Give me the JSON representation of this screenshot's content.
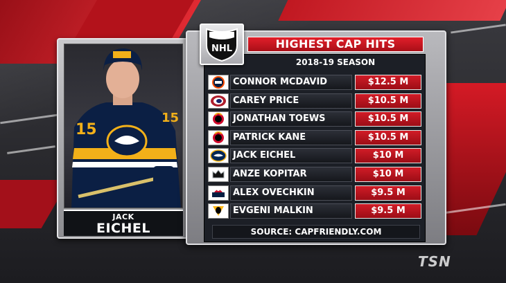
{
  "board": {
    "title": "HIGHEST CAP HITS",
    "season": "2018-19 SEASON",
    "source": "SOURCE: CAPFRIENDLY.COM"
  },
  "league_logo": {
    "icon": "nhl-shield-logo",
    "text": "NHL"
  },
  "player": {
    "first_name": "JACK",
    "last_name": "EICHEL",
    "jersey_number": "15",
    "photo": "player-photo"
  },
  "rows": [
    {
      "name": "CONNOR MCDAVID",
      "cap": "$12.5 M",
      "team_icon": "oilers-logo",
      "colors": [
        "#041e42",
        "#ff4c00"
      ]
    },
    {
      "name": "CAREY PRICE",
      "cap": "$10.5 M",
      "team_icon": "canadiens-logo",
      "colors": [
        "#af1e2d",
        "#192168"
      ]
    },
    {
      "name": "JONATHAN TOEWS",
      "cap": "$10.5 M",
      "team_icon": "blackhawks-logo",
      "colors": [
        "#cf0a2c",
        "#000000"
      ]
    },
    {
      "name": "PATRICK KANE",
      "cap": "$10.5 M",
      "team_icon": "blackhawks-logo",
      "colors": [
        "#cf0a2c",
        "#000000"
      ]
    },
    {
      "name": "JACK EICHEL",
      "cap": "$10 M",
      "team_icon": "sabres-logo",
      "colors": [
        "#002654",
        "#fcb514"
      ]
    },
    {
      "name": "ANZE KOPITAR",
      "cap": "$10 M",
      "team_icon": "kings-logo",
      "colors": [
        "#111111",
        "#a2aaad"
      ]
    },
    {
      "name": "ALEX OVECHKIN",
      "cap": "$9.5 M",
      "team_icon": "capitals-logo",
      "colors": [
        "#c8102e",
        "#041e42"
      ]
    },
    {
      "name": "EVGENI MALKIN",
      "cap": "$9.5 M",
      "team_icon": "penguins-logo",
      "colors": [
        "#000000",
        "#fcb514"
      ]
    }
  ],
  "broadcaster": {
    "text": "TSN",
    "icon": "tsn-logo"
  },
  "colors": {
    "accent_red": "#d11c27",
    "panel_dark": "#1c1f26",
    "frame_silver": "#b9b9bd"
  }
}
